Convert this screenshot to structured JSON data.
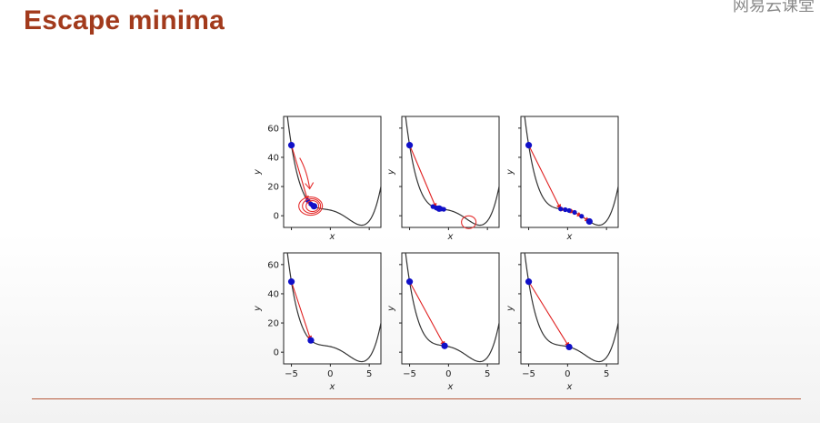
{
  "slide": {
    "title": "Escape minima",
    "logo_text": "网易云课堂"
  },
  "colors": {
    "title": "#a23a1c",
    "curve": "#333333",
    "arrow": "#e02020",
    "point": "#1010c8",
    "annotation": "#e53030",
    "rule": "#b75a3c"
  },
  "chart_data": [
    {
      "type": "line",
      "panel": "top-left",
      "xlabel": "x",
      "ylabel": "y",
      "xlim": [
        -6,
        6.5
      ],
      "ylim": [
        -8,
        68
      ],
      "yticks": [
        "0",
        "20",
        "40",
        "60"
      ],
      "xticks": [],
      "path_x": [
        -5,
        -2.9,
        -2.4,
        -2.2,
        -2.5,
        -2.1
      ],
      "annotated": "circled"
    },
    {
      "type": "line",
      "panel": "top-middle",
      "xlabel": "x",
      "ylabel": "y",
      "xlim": [
        -6,
        6.5
      ],
      "ylim": [
        -8,
        68
      ],
      "yticks": [],
      "xticks": [],
      "path_x": [
        -5,
        -1.6,
        -2.0,
        -0.9,
        -1.5,
        -0.6,
        -1.2
      ],
      "annotated": "circle-at-minimum"
    },
    {
      "type": "line",
      "panel": "top-right",
      "xlabel": "x",
      "ylabel": "y",
      "xlim": [
        -6,
        6.5
      ],
      "ylim": [
        -8,
        68
      ],
      "yticks": [],
      "xticks": [],
      "path_x": [
        -5,
        -0.9,
        -0.3,
        0.2,
        0.9,
        1.8,
        2.8
      ],
      "annotated": "none"
    },
    {
      "type": "line",
      "panel": "bottom-left",
      "xlabel": "x",
      "ylabel": "y",
      "xlim": [
        -6,
        6.5
      ],
      "ylim": [
        -8,
        68
      ],
      "yticks": [
        "0",
        "20",
        "40",
        "60"
      ],
      "xticks": [
        "-5",
        "0",
        "5"
      ],
      "path_x": [
        -5,
        -2.5
      ],
      "annotated": "none"
    },
    {
      "type": "line",
      "panel": "bottom-middle",
      "xlabel": "x",
      "ylabel": "y",
      "xlim": [
        -6,
        6.5
      ],
      "ylim": [
        -8,
        68
      ],
      "yticks": [],
      "xticks": [
        "-5",
        "0",
        "5"
      ],
      "path_x": [
        -5,
        -0.5
      ],
      "annotated": "none"
    },
    {
      "type": "line",
      "panel": "bottom-right",
      "xlabel": "x",
      "ylabel": "y",
      "xlim": [
        -6,
        6.5
      ],
      "ylim": [
        -8,
        68
      ],
      "yticks": [],
      "xticks": [
        "-5",
        "0",
        "5"
      ],
      "path_x": [
        -5,
        0.2
      ],
      "annotated": "none"
    }
  ]
}
